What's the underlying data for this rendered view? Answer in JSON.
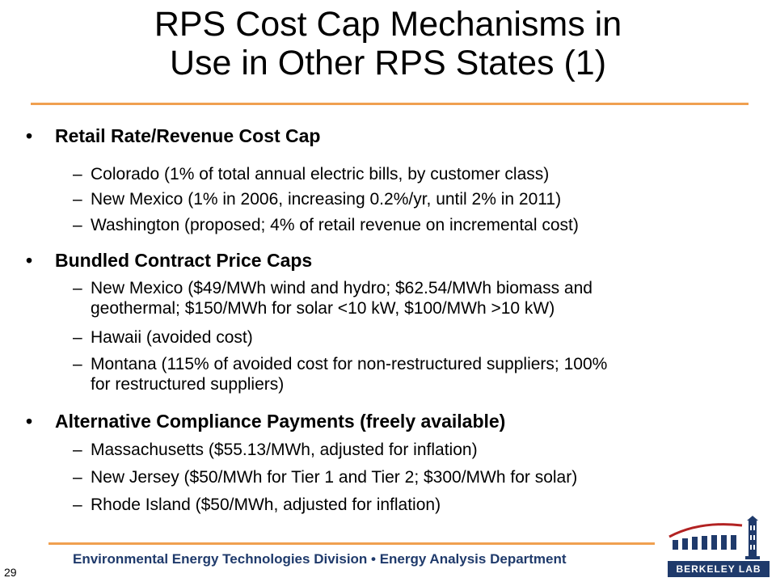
{
  "title": {
    "line1": "RPS Cost Cap Mechanisms in",
    "line2": "Use in Other RPS States (1)"
  },
  "sections": [
    {
      "heading": "Retail Rate/Revenue Cost Cap",
      "items": [
        [
          "Colorado (1% of total annual electric bills, by customer class)"
        ],
        [
          "New Mexico (1% in 2006, increasing 0.2%/yr, until 2% in 2011)"
        ],
        [
          "Washington (proposed; 4% of retail revenue on incremental cost)"
        ]
      ]
    },
    {
      "heading": "Bundled Contract Price Caps",
      "items": [
        [
          "New Mexico ($49/MWh wind and hydro; $62.54/MWh biomass and",
          "geothermal; $150/MWh for solar <10 kW, $100/MWh >10 kW)"
        ],
        [
          "Hawaii (avoided cost)"
        ],
        [
          "Montana (115% of avoided cost for non-restructured suppliers; 100%",
          "for restructured suppliers)"
        ]
      ]
    },
    {
      "heading": "Alternative Compliance Payments (freely available)",
      "items": [
        [
          "Massachusetts ($55.13/MWh, adjusted for inflation)"
        ],
        [
          "New Jersey ($50/MWh for Tier 1 and Tier 2; $300/MWh for solar)"
        ],
        [
          "Rhode Island ($50/MWh, adjusted for inflation)"
        ]
      ]
    }
  ],
  "footer": {
    "text": "Environmental Energy Technologies Division • Energy Analysis Department",
    "page_number": "29",
    "logo_text": "BERKELEY LAB"
  },
  "colors": {
    "accent_rule": "#f0a050",
    "footer_text": "#1f3a6b"
  }
}
